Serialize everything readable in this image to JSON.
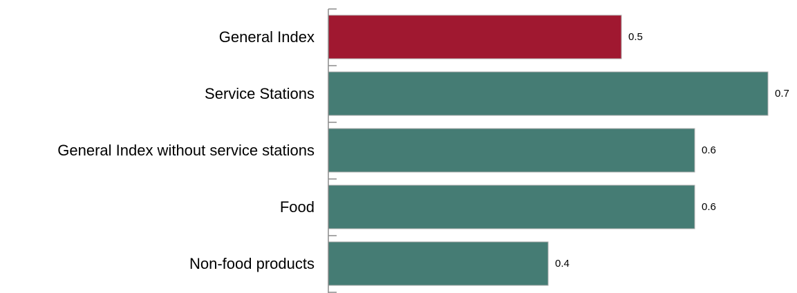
{
  "chart_data": {
    "type": "bar",
    "orientation": "horizontal",
    "categories": [
      "General Index",
      "Service Stations",
      "General Index without service stations",
      "Food",
      "Non-food products"
    ],
    "values": [
      0.5,
      0.7,
      0.6,
      0.6,
      0.4
    ],
    "data_labels": [
      "0.5",
      "0.7",
      "0.6",
      "0.6",
      "0.4"
    ],
    "xlim": [
      0.1,
      0.7
    ],
    "title": "",
    "xlabel": "",
    "ylabel": "",
    "grid": false,
    "legend": "none",
    "colors": {
      "highlight": "#a01830",
      "default": "#457c74"
    },
    "highlight_categories": [
      "General Index"
    ]
  }
}
